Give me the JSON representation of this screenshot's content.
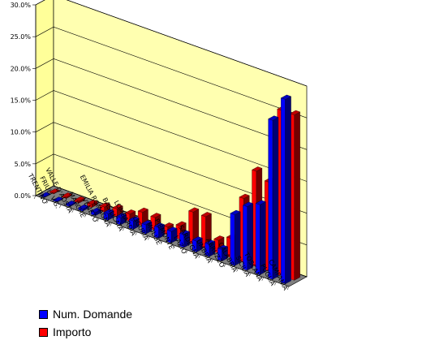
{
  "chart_data": {
    "type": "bar",
    "style": "3d-clustered-column",
    "title": "",
    "xlabel": "",
    "ylabel": "",
    "ylim": [
      0,
      30
    ],
    "y_ticks": [
      "0.0%",
      "5.0%",
      "10.0%",
      "15.0%",
      "20.0%",
      "25.0%",
      "30.0%"
    ],
    "grid": true,
    "legend_position": "bottom-left",
    "categories": [
      "TRENTINO",
      "FRIULI V.G.",
      "VALLE D'AOSTA",
      "MARCHE",
      "VENETO",
      "EMILIA ROMAGNA",
      "BASILICATA",
      "LOMBARDIA",
      "LIGURIA",
      "MOLISE",
      "PIEMONTE",
      "LAZIO",
      "SARDEGNA",
      "UMBRIA",
      "ABRUZZO",
      "CALABRIA",
      "SICILIA",
      "TOSCANA",
      "PUGLIA",
      "CAMPANIA"
    ],
    "series": [
      {
        "name": "Num. Domande",
        "color": "#0000FF",
        "values": [
          0.1,
          0.1,
          0.2,
          0.3,
          0.5,
          1.0,
          1.1,
          1.3,
          1.4,
          1.7,
          1.8,
          2.0,
          1.7,
          1.9,
          1.8,
          8.0,
          10.0,
          11.0,
          25.0,
          29.0
        ]
      },
      {
        "name": "Importo",
        "color": "#FF0000",
        "values": [
          0.1,
          0.2,
          0.3,
          0.5,
          0.8,
          1.2,
          1.1,
          2.1,
          2.0,
          1.2,
          2.1,
          5.0,
          5.0,
          2.0,
          3.0,
          10.0,
          15.0,
          14.0,
          26.0,
          26.0
        ]
      }
    ]
  }
}
